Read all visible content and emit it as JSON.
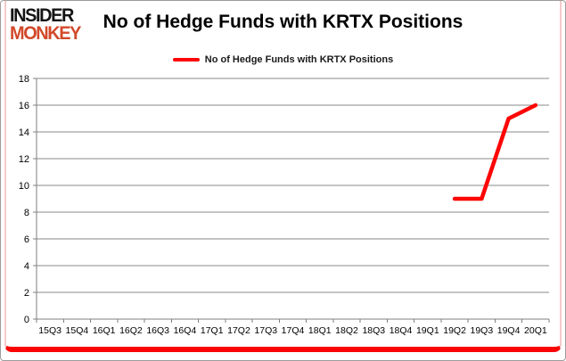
{
  "branding": {
    "line1": "INSIDER",
    "line2": "MONKEY"
  },
  "header": {
    "title": "No of Hedge Funds with KRTX Positions"
  },
  "legend": {
    "label": "No of Hedge Funds with KRTX Positions"
  },
  "colors": {
    "series_red": "#fe0505",
    "logo_black": "#141414",
    "logo_red": "#d2492a",
    "grid_gray": "#8a8a8a",
    "axis_gray": "#7f7f7f",
    "tick_label": "#000000",
    "side_border_pink": "#f5caca",
    "bottom_border_red": "#fb0404",
    "outer_border_gray": "#9c9c9c"
  },
  "chart_data": {
    "type": "line",
    "title": "No of Hedge Funds with KRTX Positions",
    "categories": [
      "15Q3",
      "15Q4",
      "16Q1",
      "16Q2",
      "16Q3",
      "16Q4",
      "17Q1",
      "17Q2",
      "17Q3",
      "17Q4",
      "18Q1",
      "18Q2",
      "18Q3",
      "18Q4",
      "19Q1",
      "19Q2",
      "19Q3",
      "19Q4",
      "20Q1"
    ],
    "series": [
      {
        "name": "No of Hedge Funds with KRTX Positions",
        "color": "#fe0505",
        "values": [
          null,
          null,
          null,
          null,
          null,
          null,
          null,
          null,
          null,
          null,
          null,
          null,
          null,
          null,
          null,
          9,
          9,
          15,
          16
        ]
      }
    ],
    "xlabel": "",
    "ylabel": "",
    "ylim": [
      0,
      18
    ],
    "ytick_step": 2,
    "grid": true,
    "legend_position": "top-center"
  }
}
